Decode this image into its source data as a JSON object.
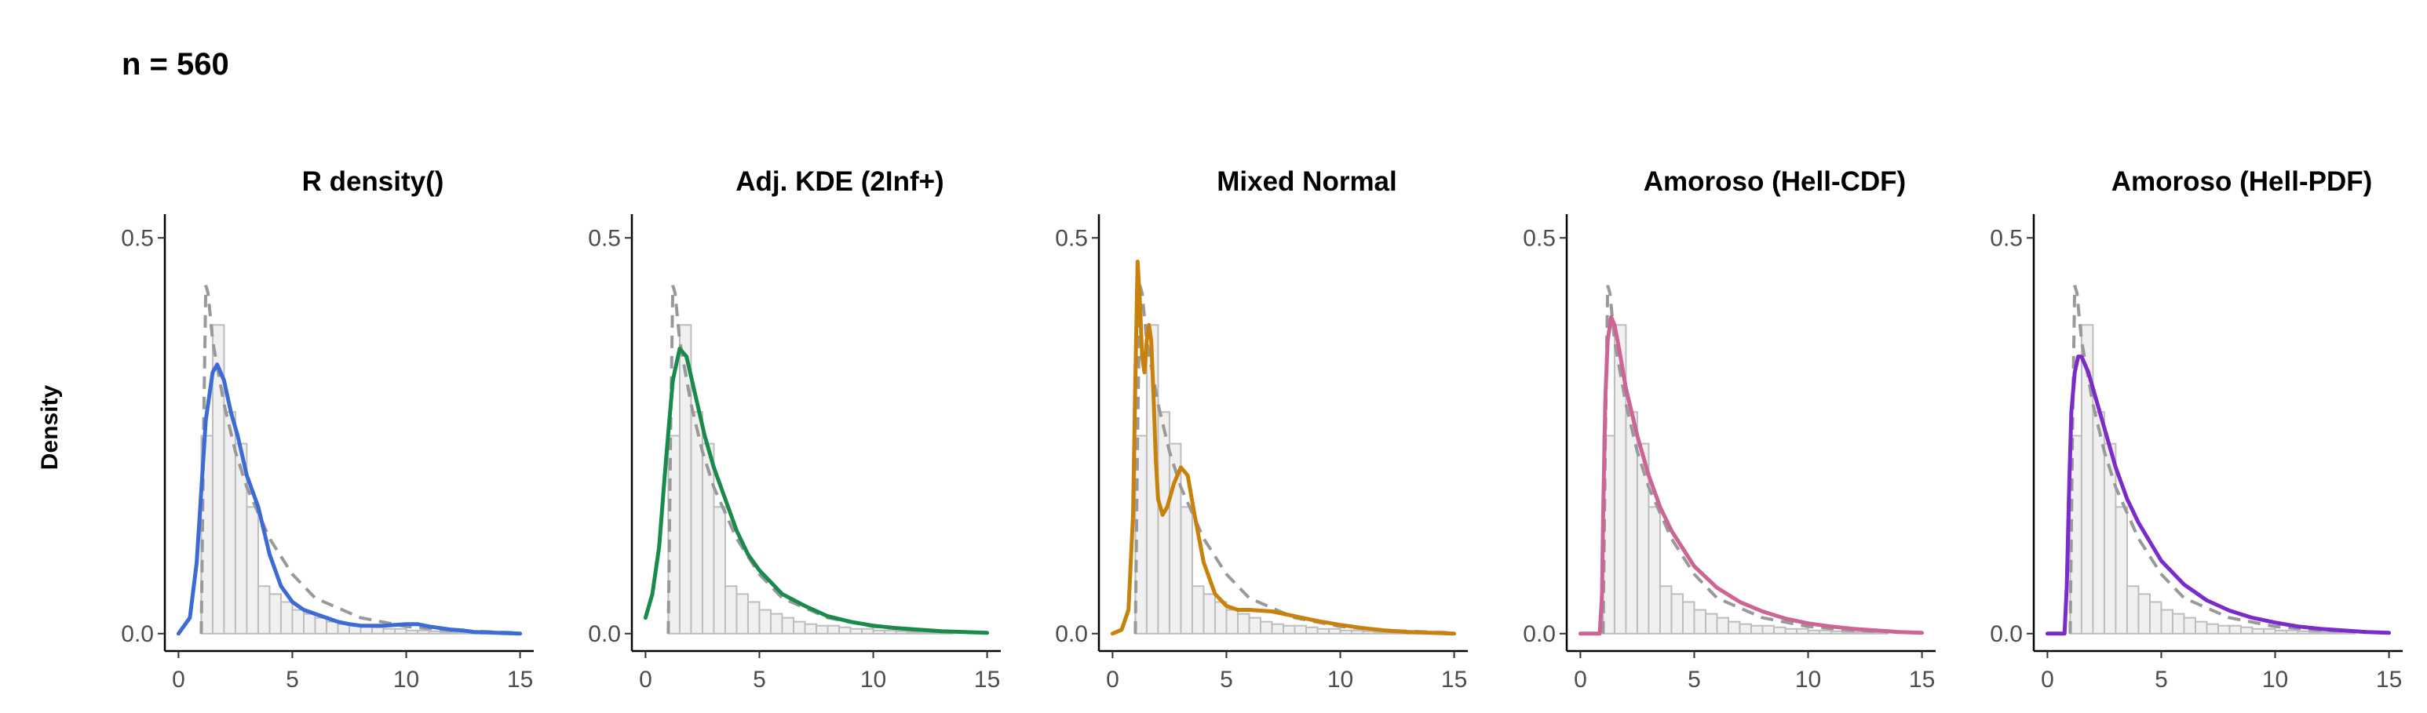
{
  "page": {
    "title": "n = 560",
    "ylabel": "Density"
  },
  "style": {
    "hist_fill": "#f0f0f0",
    "hist_edge": "#bdbdbd",
    "reference_color": "#999999",
    "axis_color": "#000000"
  },
  "chart_data": [
    {
      "type": "line",
      "title": "R density()",
      "xlabel": "",
      "ylabel": "Density",
      "xlim": [
        -0.6,
        15.6
      ],
      "ylim": [
        -0.022,
        0.53
      ],
      "xticks": [
        "0",
        "5",
        "10",
        "15"
      ],
      "yticks": [
        "0.0",
        "0.5"
      ],
      "color": "#3d6bd6",
      "histogram": {
        "bin_width": 0.5,
        "bin_start": 0.5,
        "values": [
          0.0,
          0.25,
          0.39,
          0.28,
          0.24,
          0.16,
          0.06,
          0.05,
          0.04,
          0.03,
          0.025,
          0.02,
          0.015,
          0.012,
          0.01,
          0.01,
          0.008,
          0.006,
          0.006,
          0.004,
          0.004,
          0.003,
          0.002,
          0.002,
          0.001,
          0.001,
          0.0,
          0.0,
          0.0
        ]
      },
      "reference_curve": {
        "x": [
          1.0,
          1.1,
          1.2,
          1.3,
          1.5,
          2.0,
          2.5,
          3.0,
          4.0,
          5.0,
          6.0,
          8.0,
          10.0,
          12.0,
          15.0
        ],
        "y": [
          0.0,
          0.25,
          0.44,
          0.43,
          0.37,
          0.29,
          0.23,
          0.185,
          0.12,
          0.075,
          0.045,
          0.02,
          0.009,
          0.004,
          0.001
        ]
      },
      "series": [
        {
          "x": [
            0.0,
            0.5,
            0.8,
            1.0,
            1.2,
            1.5,
            1.7,
            2.0,
            2.3,
            2.6,
            3.0,
            3.5,
            4.0,
            4.5,
            5.0,
            5.5,
            6.0,
            6.5,
            7.0,
            7.5,
            8.0,
            9.0,
            10.0,
            10.5,
            11.0,
            12.0,
            12.5,
            13.0,
            14.0,
            15.0
          ],
          "y": [
            0.0,
            0.02,
            0.09,
            0.18,
            0.27,
            0.33,
            0.34,
            0.32,
            0.28,
            0.25,
            0.2,
            0.16,
            0.1,
            0.06,
            0.04,
            0.03,
            0.025,
            0.02,
            0.015,
            0.012,
            0.01,
            0.01,
            0.012,
            0.012,
            0.009,
            0.005,
            0.004,
            0.002,
            0.001,
            0.0
          ]
        }
      ]
    },
    {
      "type": "line",
      "title": "Adj. KDE (2Inf+)",
      "xlabel": "",
      "ylabel": "Density",
      "xlim": [
        -0.6,
        15.6
      ],
      "ylim": [
        -0.022,
        0.53
      ],
      "xticks": [
        "0",
        "5",
        "10",
        "15"
      ],
      "yticks": [
        "0.0",
        "0.5"
      ],
      "color": "#1a8a4c",
      "histogram": {
        "bin_width": 0.5,
        "bin_start": 0.5,
        "values": [
          0.0,
          0.25,
          0.39,
          0.28,
          0.24,
          0.16,
          0.06,
          0.05,
          0.04,
          0.03,
          0.025,
          0.02,
          0.015,
          0.012,
          0.01,
          0.01,
          0.008,
          0.006,
          0.006,
          0.004,
          0.004,
          0.003,
          0.002,
          0.002,
          0.001,
          0.001,
          0.0,
          0.0,
          0.0
        ]
      },
      "reference_curve": {
        "x": [
          1.0,
          1.1,
          1.2,
          1.3,
          1.5,
          2.0,
          2.5,
          3.0,
          4.0,
          5.0,
          6.0,
          8.0,
          10.0,
          12.0,
          15.0
        ],
        "y": [
          0.0,
          0.25,
          0.44,
          0.43,
          0.37,
          0.29,
          0.23,
          0.185,
          0.12,
          0.075,
          0.045,
          0.02,
          0.009,
          0.004,
          0.001
        ]
      },
      "series": [
        {
          "x": [
            0.0,
            0.3,
            0.6,
            0.9,
            1.2,
            1.5,
            1.8,
            2.2,
            2.6,
            3.0,
            3.5,
            4.0,
            4.5,
            5.0,
            5.5,
            6.0,
            7.0,
            8.0,
            9.0,
            10.0,
            11.0,
            12.0,
            13.0,
            14.0,
            15.0
          ],
          "y": [
            0.02,
            0.05,
            0.11,
            0.22,
            0.32,
            0.36,
            0.35,
            0.3,
            0.25,
            0.21,
            0.17,
            0.13,
            0.1,
            0.08,
            0.065,
            0.05,
            0.035,
            0.022,
            0.015,
            0.01,
            0.007,
            0.005,
            0.003,
            0.002,
            0.001
          ]
        }
      ]
    },
    {
      "type": "line",
      "title": "Mixed Normal",
      "xlabel": "",
      "ylabel": "Density",
      "xlim": [
        -0.6,
        15.6
      ],
      "ylim": [
        -0.022,
        0.53
      ],
      "xticks": [
        "0",
        "5",
        "10",
        "15"
      ],
      "yticks": [
        "0.0",
        "0.5"
      ],
      "color": "#c8820c",
      "histogram": {
        "bin_width": 0.5,
        "bin_start": 0.5,
        "values": [
          0.0,
          0.25,
          0.39,
          0.28,
          0.24,
          0.16,
          0.06,
          0.05,
          0.04,
          0.03,
          0.025,
          0.02,
          0.015,
          0.012,
          0.01,
          0.01,
          0.008,
          0.006,
          0.006,
          0.004,
          0.004,
          0.003,
          0.002,
          0.002,
          0.001,
          0.001,
          0.0,
          0.0,
          0.0
        ]
      },
      "reference_curve": {
        "x": [
          1.0,
          1.1,
          1.2,
          1.3,
          1.5,
          2.0,
          2.5,
          3.0,
          4.0,
          5.0,
          6.0,
          8.0,
          10.0,
          12.0,
          15.0
        ],
        "y": [
          0.0,
          0.25,
          0.44,
          0.43,
          0.37,
          0.29,
          0.23,
          0.185,
          0.12,
          0.075,
          0.045,
          0.02,
          0.009,
          0.004,
          0.001
        ]
      },
      "series": [
        {
          "x": [
            0.0,
            0.4,
            0.7,
            0.9,
            1.0,
            1.1,
            1.2,
            1.3,
            1.4,
            1.5,
            1.6,
            1.7,
            1.8,
            1.9,
            2.0,
            2.2,
            2.4,
            2.7,
            3.0,
            3.3,
            3.6,
            4.0,
            4.5,
            5.0,
            5.5,
            6.0,
            7.0,
            8.0,
            9.0,
            10.0,
            11.0,
            12.0,
            13.0,
            14.0,
            15.0
          ],
          "y": [
            0.0,
            0.005,
            0.03,
            0.15,
            0.32,
            0.47,
            0.42,
            0.35,
            0.33,
            0.37,
            0.39,
            0.37,
            0.3,
            0.22,
            0.17,
            0.15,
            0.16,
            0.19,
            0.21,
            0.2,
            0.15,
            0.09,
            0.05,
            0.035,
            0.03,
            0.03,
            0.028,
            0.022,
            0.016,
            0.011,
            0.007,
            0.004,
            0.002,
            0.001,
            0.0
          ]
        }
      ]
    },
    {
      "type": "line",
      "title": "Amoroso (Hell-CDF)",
      "xlabel": "",
      "ylabel": "Density",
      "xlim": [
        -0.6,
        15.6
      ],
      "ylim": [
        -0.022,
        0.53
      ],
      "xticks": [
        "0",
        "5",
        "10",
        "15"
      ],
      "yticks": [
        "0.0",
        "0.5"
      ],
      "color": "#cc6494",
      "histogram": {
        "bin_width": 0.5,
        "bin_start": 0.5,
        "values": [
          0.0,
          0.25,
          0.39,
          0.28,
          0.24,
          0.16,
          0.06,
          0.05,
          0.04,
          0.03,
          0.025,
          0.02,
          0.015,
          0.012,
          0.01,
          0.01,
          0.008,
          0.006,
          0.006,
          0.004,
          0.004,
          0.003,
          0.002,
          0.002,
          0.001,
          0.001,
          0.0,
          0.0,
          0.0
        ]
      },
      "reference_curve": {
        "x": [
          1.0,
          1.1,
          1.2,
          1.3,
          1.5,
          2.0,
          2.5,
          3.0,
          4.0,
          5.0,
          6.0,
          8.0,
          10.0,
          12.0,
          15.0
        ],
        "y": [
          0.0,
          0.25,
          0.44,
          0.43,
          0.37,
          0.29,
          0.23,
          0.185,
          0.12,
          0.075,
          0.045,
          0.02,
          0.009,
          0.004,
          0.001
        ]
      },
      "series": [
        {
          "x": [
            0.0,
            0.5,
            0.85,
            0.95,
            1.0,
            1.1,
            1.2,
            1.35,
            1.5,
            1.7,
            2.0,
            2.5,
            3.0,
            3.5,
            4.0,
            5.0,
            6.0,
            7.0,
            8.0,
            9.0,
            10.0,
            11.0,
            12.0,
            13.0,
            14.0,
            15.0
          ],
          "y": [
            0.0,
            0.0,
            0.0,
            0.05,
            0.15,
            0.3,
            0.37,
            0.4,
            0.39,
            0.36,
            0.31,
            0.25,
            0.2,
            0.16,
            0.13,
            0.085,
            0.058,
            0.04,
            0.028,
            0.019,
            0.013,
            0.009,
            0.006,
            0.004,
            0.002,
            0.001
          ]
        }
      ]
    },
    {
      "type": "line",
      "title": "Amoroso (Hell-PDF)",
      "xlabel": "",
      "ylabel": "Density",
      "xlim": [
        -0.6,
        15.6
      ],
      "ylim": [
        -0.022,
        0.53
      ],
      "xticks": [
        "0",
        "5",
        "10",
        "15"
      ],
      "yticks": [
        "0.0",
        "0.5"
      ],
      "color": "#7b2bc9",
      "histogram": {
        "bin_width": 0.5,
        "bin_start": 0.5,
        "values": [
          0.0,
          0.25,
          0.39,
          0.28,
          0.24,
          0.16,
          0.06,
          0.05,
          0.04,
          0.03,
          0.025,
          0.02,
          0.015,
          0.012,
          0.01,
          0.01,
          0.008,
          0.006,
          0.006,
          0.004,
          0.004,
          0.003,
          0.002,
          0.002,
          0.001,
          0.001,
          0.0,
          0.0,
          0.0
        ]
      },
      "reference_curve": {
        "x": [
          1.0,
          1.1,
          1.2,
          1.3,
          1.5,
          2.0,
          2.5,
          3.0,
          4.0,
          5.0,
          6.0,
          8.0,
          10.0,
          12.0,
          15.0
        ],
        "y": [
          0.0,
          0.25,
          0.44,
          0.43,
          0.37,
          0.29,
          0.23,
          0.185,
          0.12,
          0.075,
          0.045,
          0.02,
          0.009,
          0.004,
          0.001
        ]
      },
      "series": [
        {
          "x": [
            0.0,
            0.5,
            0.75,
            0.85,
            0.95,
            1.05,
            1.2,
            1.35,
            1.5,
            1.8,
            2.0,
            2.5,
            3.0,
            3.5,
            4.0,
            5.0,
            6.0,
            7.0,
            8.0,
            9.0,
            10.0,
            11.0,
            12.0,
            13.0,
            14.0,
            15.0
          ],
          "y": [
            0.0,
            0.0,
            0.0,
            0.06,
            0.18,
            0.28,
            0.33,
            0.35,
            0.35,
            0.33,
            0.31,
            0.26,
            0.21,
            0.17,
            0.14,
            0.092,
            0.062,
            0.042,
            0.029,
            0.02,
            0.014,
            0.009,
            0.006,
            0.004,
            0.002,
            0.001
          ]
        }
      ]
    }
  ]
}
